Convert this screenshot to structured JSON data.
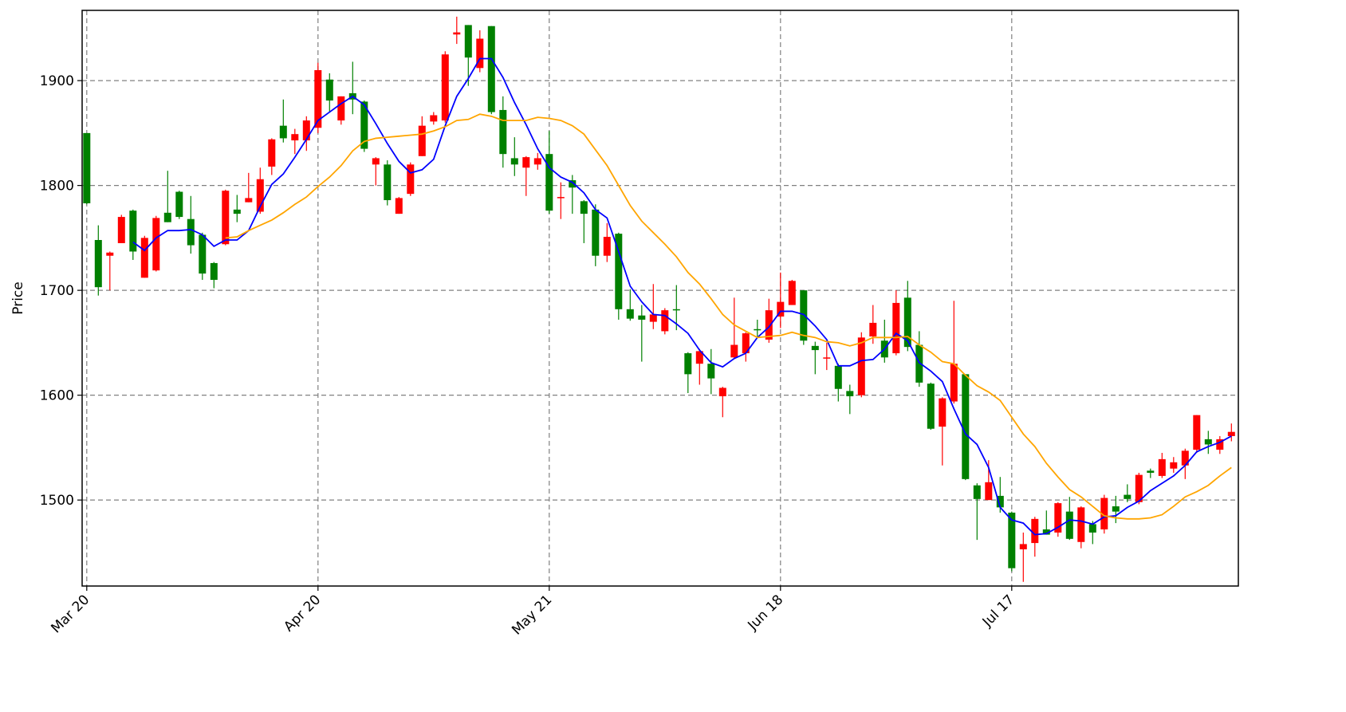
{
  "chart_data": {
    "type": "candlestick",
    "ylabel": "Price",
    "categories": [
      "Mar 20",
      null,
      null,
      null,
      null,
      null,
      null,
      null,
      null,
      null,
      null,
      null,
      null,
      null,
      null,
      null,
      null,
      null,
      null,
      null,
      "Apr 20",
      null,
      null,
      null,
      null,
      null,
      null,
      null,
      null,
      null,
      null,
      null,
      null,
      null,
      null,
      null,
      null,
      null,
      null,
      null,
      "May 21",
      null,
      null,
      null,
      null,
      null,
      null,
      null,
      null,
      null,
      null,
      null,
      null,
      null,
      null,
      null,
      null,
      null,
      null,
      null,
      "Jun 18",
      null,
      null,
      null,
      null,
      null,
      null,
      null,
      null,
      null,
      null,
      null,
      null,
      null,
      null,
      null,
      null,
      null,
      null,
      null,
      "Jul 17",
      null,
      null,
      null,
      null,
      null,
      null,
      null,
      null,
      null,
      null,
      null,
      null,
      null,
      null,
      null,
      null,
      null,
      null,
      null
    ],
    "open": [
      1850,
      1748,
      1733,
      1745,
      1776,
      1712,
      1719,
      1774,
      1794,
      1768,
      1753,
      1726,
      1744,
      1777,
      1784,
      1775,
      1818,
      1857,
      1843,
      1843,
      1855,
      1901,
      1862,
      1888,
      1880,
      1820,
      1820,
      1773,
      1792,
      1828,
      1861,
      1862,
      1944,
      1953,
      1912,
      1952,
      1872,
      1826,
      1817,
      1820,
      1830,
      1788,
      1805,
      1785,
      1777,
      1733,
      1754,
      1682,
      1676,
      1670,
      1661,
      1682,
      1640,
      1630,
      1630,
      1599,
      1636,
      1640,
      1663,
      1653,
      1675,
      1686,
      1700,
      1647,
      1635,
      1628,
      1604,
      1600,
      1656,
      1652,
      1640,
      1693,
      1648,
      1611,
      1570,
      1594,
      1620,
      1514,
      1500,
      1504,
      1488,
      1453,
      1459,
      1472,
      1469,
      1489,
      1460,
      1477,
      1472,
      1494,
      1505,
      1498,
      1528,
      1523,
      1530,
      1533,
      1548,
      1558,
      1548,
      1561
    ],
    "high": [
      1850,
      1762,
      1737,
      1772,
      1777,
      1752,
      1771,
      1814,
      1795,
      1790,
      1755,
      1727,
      1796,
      1791,
      1812,
      1817,
      1845,
      1882,
      1854,
      1866,
      1917,
      1907,
      1885,
      1918,
      1881,
      1827,
      1824,
      1789,
      1822,
      1866,
      1870,
      1928,
      1961,
      1953,
      1948,
      1952,
      1885,
      1846,
      1828,
      1831,
      1852,
      1803,
      1810,
      1786,
      1782,
      1764,
      1755,
      1701,
      1686,
      1706,
      1683,
      1705,
      1641,
      1644,
      1644,
      1608,
      1693,
      1660,
      1672,
      1692,
      1717,
      1710,
      1700,
      1651,
      1650,
      1630,
      1610,
      1660,
      1686,
      1672,
      1700,
      1709,
      1661,
      1612,
      1598,
      1690,
      1620,
      1516,
      1538,
      1522,
      1489,
      1469,
      1484,
      1490,
      1498,
      1503,
      1494,
      1480,
      1505,
      1504,
      1515,
      1526,
      1530,
      1545,
      1541,
      1549,
      1581,
      1566,
      1561,
      1573
    ],
    "low": [
      1782,
      1695,
      1700,
      1745,
      1729,
      1712,
      1718,
      1765,
      1768,
      1735,
      1710,
      1702,
      1743,
      1765,
      1784,
      1773,
      1810,
      1841,
      1830,
      1833,
      1850,
      1870,
      1858,
      1868,
      1832,
      1800,
      1781,
      1773,
      1790,
      1828,
      1858,
      1860,
      1935,
      1895,
      1908,
      1868,
      1817,
      1809,
      1790,
      1815,
      1773,
      1768,
      1773,
      1745,
      1723,
      1727,
      1672,
      1671,
      1632,
      1663,
      1658,
      1662,
      1602,
      1610,
      1601,
      1579,
      1635,
      1632,
      1656,
      1650,
      1664,
      1686,
      1648,
      1620,
      1624,
      1594,
      1582,
      1598,
      1649,
      1631,
      1638,
      1642,
      1608,
      1567,
      1533,
      1592,
      1519,
      1462,
      1500,
      1488,
      1432,
      1422,
      1446,
      1467,
      1465,
      1462,
      1454,
      1458,
      1468,
      1478,
      1498,
      1496,
      1521,
      1521,
      1526,
      1520,
      1545,
      1544,
      1544,
      1556
    ],
    "close": [
      1783,
      1703,
      1736,
      1770,
      1737,
      1750,
      1769,
      1765,
      1770,
      1743,
      1716,
      1710,
      1795,
      1773,
      1788,
      1806,
      1844,
      1845,
      1849,
      1862,
      1910,
      1881,
      1885,
      1882,
      1835,
      1826,
      1786,
      1788,
      1820,
      1857,
      1867,
      1925,
      1946,
      1922,
      1940,
      1870,
      1830,
      1820,
      1827,
      1826,
      1776,
      1789,
      1798,
      1773,
      1733,
      1751,
      1682,
      1673,
      1672,
      1677,
      1681,
      1681,
      1620,
      1642,
      1616,
      1607,
      1648,
      1659,
      1662,
      1681,
      1689,
      1709,
      1652,
      1643,
      1636,
      1606,
      1599,
      1655,
      1669,
      1636,
      1688,
      1646,
      1612,
      1568,
      1597,
      1630,
      1520,
      1501,
      1517,
      1493,
      1435,
      1458,
      1482,
      1467,
      1497,
      1463,
      1493,
      1469,
      1502,
      1489,
      1501,
      1524,
      1526,
      1539,
      1536,
      1547,
      1581,
      1553,
      1558,
      1565
    ],
    "up_color": "#ff0000",
    "down_color": "#008000",
    "lines": [
      {
        "color": "#0000ff",
        "values": [
          null,
          null,
          null,
          null,
          1746,
          1738,
          1750,
          1757,
          1757,
          1758,
          1753,
          1742,
          1748,
          1748,
          1757,
          1780,
          1801,
          1811,
          1827,
          1844,
          1862,
          1870,
          1878,
          1885,
          1877,
          1859,
          1840,
          1823,
          1812,
          1815,
          1825,
          1857,
          1885,
          1902,
          1921,
          1921,
          1903,
          1879,
          1858,
          1835,
          1817,
          1808,
          1803,
          1793,
          1777,
          1769,
          1737,
          1704,
          1689,
          1677,
          1676,
          1668,
          1659,
          1643,
          1631,
          1627,
          1635,
          1640,
          1655,
          1665,
          1680,
          1680,
          1677,
          1666,
          1653,
          1628,
          1628,
          1633,
          1634,
          1644,
          1659,
          1652,
          1631,
          1623,
          1613,
          1587,
          1563,
          1553,
          1531,
          1493,
          1481,
          1478,
          1467,
          1468,
          1474,
          1481,
          1480,
          1477,
          1484,
          1485,
          1493,
          1499,
          1509,
          1516,
          1523,
          1533,
          1546,
          1551,
          1555,
          1561
        ]
      },
      {
        "color": "#ffa500",
        "values": [
          null,
          null,
          null,
          null,
          null,
          null,
          null,
          null,
          null,
          null,
          null,
          null,
          1750,
          1751,
          1757,
          1762,
          1767,
          1774,
          1782,
          1789,
          1799,
          1808,
          1819,
          1833,
          1842,
          1845,
          1846,
          1847,
          1848,
          1849,
          1852,
          1856,
          1862,
          1863,
          1868,
          1866,
          1862,
          1862,
          1862,
          1865,
          1864,
          1862,
          1857,
          1849,
          1834,
          1819,
          1800,
          1781,
          1766,
          1755,
          1744,
          1732,
          1717,
          1706,
          1692,
          1677,
          1667,
          1661,
          1655,
          1656,
          1657,
          1660,
          1657,
          1655,
          1651,
          1650,
          1647,
          1650,
          1655,
          1655,
          1655,
          1656,
          1648,
          1641,
          1632,
          1630,
          1619,
          1609,
          1603,
          1595,
          1579,
          1563,
          1551,
          1535,
          1522,
          1510,
          1503,
          1494,
          1485,
          1483,
          1482,
          1482,
          1483,
          1486,
          1494,
          1503,
          1508,
          1514,
          1523,
          1531
        ]
      }
    ],
    "ylim": [
      1418,
      1967
    ],
    "yticks": [
      1500,
      1600,
      1700,
      1800,
      1900
    ],
    "grid": true
  }
}
